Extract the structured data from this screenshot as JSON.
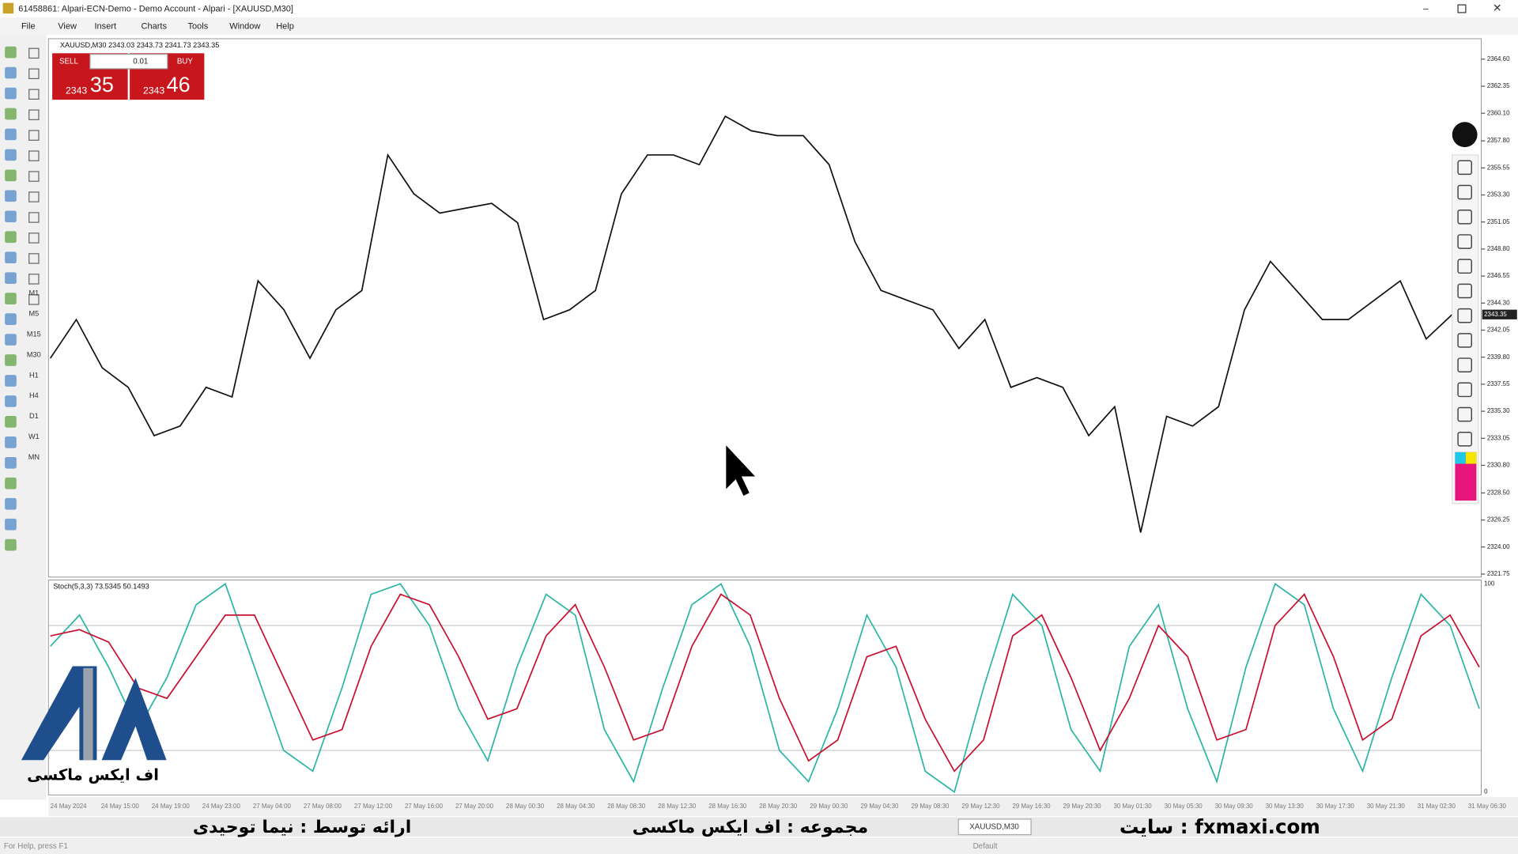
{
  "window": {
    "title": "61458861: Alpari-ECN-Demo - Demo Account - Alpari - [XAUUSD,M30]",
    "menu": [
      "File",
      "View",
      "Insert",
      "Charts",
      "Tools",
      "Window",
      "Help"
    ]
  },
  "timeframes": [
    "M1",
    "M5",
    "M15",
    "M30",
    "H1",
    "H4",
    "D1",
    "W1",
    "MN"
  ],
  "chart": {
    "symbol_info": "XAUUSD,M30  2343.03 2343.73 2341.73 2343.35",
    "trade_panel": {
      "sell": "SELL",
      "lot": "0.01",
      "buy": "BUY",
      "bid_big": "2343",
      "bid_small": "35",
      "ask_big": "2343",
      "ask_small": "46"
    },
    "price_axis": {
      "ylim": [
        2321.5,
        2366.3
      ],
      "ticks": [
        {
          "value": 2364.6,
          "label": "2364.60"
        },
        {
          "value": 2362.35,
          "label": "2362.35"
        },
        {
          "value": 2360.1,
          "label": "2360.10"
        },
        {
          "value": 2357.8,
          "label": "2357.80"
        },
        {
          "value": 2355.55,
          "label": "2355.55"
        },
        {
          "value": 2353.3,
          "label": "2353.30"
        },
        {
          "value": 2351.05,
          "label": "2351.05"
        },
        {
          "value": 2348.8,
          "label": "2348.80"
        },
        {
          "value": 2346.55,
          "label": "2346.55"
        },
        {
          "value": 2344.3,
          "label": "2344.30"
        },
        {
          "value": 2342.05,
          "label": "2342.05"
        },
        {
          "value": 2339.8,
          "label": "2339.80"
        },
        {
          "value": 2337.55,
          "label": "2337.55"
        },
        {
          "value": 2335.3,
          "label": "2335.30"
        },
        {
          "value": 2333.05,
          "label": "2333.05"
        },
        {
          "value": 2330.8,
          "label": "2330.80"
        },
        {
          "value": 2328.5,
          "label": "2328.50"
        },
        {
          "value": 2326.25,
          "label": "2326.25"
        },
        {
          "value": 2324,
          "label": "2324.00"
        },
        {
          "value": 2321.75,
          "label": "2321.75"
        }
      ],
      "current": {
        "value": 2343.35,
        "label": "2343.35"
      }
    },
    "price": {
      "type": "line",
      "color": "#111111",
      "values": [
        2339.71,
        2342.93,
        2338.91,
        2337.29,
        2333.27,
        2334.07,
        2337.29,
        2336.49,
        2346.15,
        2343.74,
        2339.71,
        2343.74,
        2345.35,
        2356.63,
        2353.4,
        2351.79,
        2352.2,
        2352.6,
        2350.99,
        2342.93,
        2343.74,
        2345.35,
        2353.4,
        2356.63,
        2356.63,
        2355.82,
        2359.85,
        2358.64,
        2358.24,
        2358.24,
        2355.82,
        2349.38,
        2345.35,
        2344.54,
        2343.74,
        2340.52,
        2342.93,
        2337.29,
        2338.1,
        2337.29,
        2333.27,
        2335.68,
        2325.21,
        2334.88,
        2334.07,
        2335.68,
        2343.74,
        2347.77,
        2345.35,
        2342.93,
        2342.93,
        2344.54,
        2346.15,
        2341.32,
        2343.35
      ]
    },
    "stoch": {
      "label": "Stoch(5,3,3) 73.5345 50.1493",
      "ylim": [
        0,
        100
      ],
      "ticks": [
        100,
        0
      ],
      "levels": [
        80,
        20
      ],
      "main": {
        "color": "#2ab5a5",
        "values": [
          70,
          85,
          60,
          30,
          55,
          90,
          100,
          60,
          20,
          10,
          50,
          95,
          100,
          80,
          40,
          15,
          60,
          95,
          85,
          30,
          5,
          50,
          90,
          100,
          70,
          20,
          5,
          40,
          85,
          60,
          10,
          0,
          50,
          95,
          80,
          30,
          10,
          70,
          90,
          40,
          5,
          60,
          100,
          90,
          40,
          10,
          55,
          95,
          80,
          40
        ]
      },
      "signal": {
        "color": "#c8102e",
        "values": [
          75,
          78,
          72,
          50,
          45,
          65,
          85,
          85,
          55,
          25,
          30,
          70,
          95,
          90,
          65,
          35,
          40,
          75,
          90,
          60,
          25,
          30,
          70,
          95,
          85,
          45,
          15,
          25,
          65,
          70,
          35,
          10,
          25,
          75,
          85,
          55,
          20,
          45,
          80,
          65,
          25,
          30,
          80,
          95,
          65,
          25,
          35,
          75,
          85,
          60
        ]
      }
    },
    "time_labels": [
      "24 May 2024",
      "24 May 15:00",
      "24 May 19:00",
      "24 May 23:00",
      "27 May 04:00",
      "27 May 08:00",
      "27 May 12:00",
      "27 May 16:00",
      "27 May 20:00",
      "28 May 00:30",
      "28 May 04:30",
      "28 May 08:30",
      "28 May 12:30",
      "28 May 16:30",
      "28 May 20:30",
      "29 May 00:30",
      "29 May 04:30",
      "29 May 08:30",
      "29 May 12:30",
      "29 May 16:30",
      "29 May 20:30",
      "30 May 01:30",
      "30 May 05:30",
      "30 May 09:30",
      "30 May 13:30",
      "30 May 17:30",
      "30 May 21:30",
      "31 May 02:30",
      "31 May 06:30"
    ]
  },
  "tabs": [
    "XAUUSD,M30"
  ],
  "status": {
    "help": "For Help, press F1",
    "profile": "Default"
  },
  "overlay": {
    "presenter": "ارائه توسط : نیما توحیدی",
    "series": "مجموعه : اف ایکس ماکسی",
    "site": "سایت : fxmaxi.com",
    "logo": "اف ایکس ماکسی"
  }
}
